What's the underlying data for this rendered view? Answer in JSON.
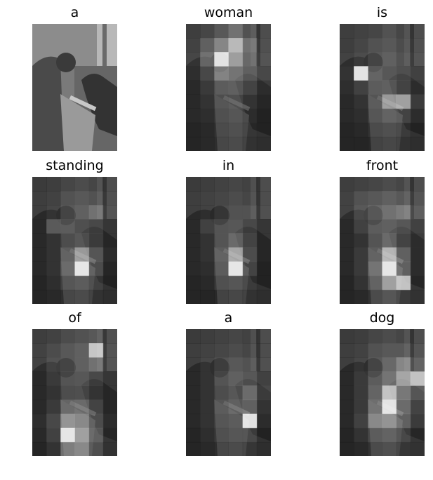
{
  "panels": [
    {
      "word": "a",
      "heat": [
        [
          0.55,
          0.55,
          0.55,
          0.55,
          0.55,
          0.55
        ],
        [
          0.55,
          0.55,
          0.55,
          0.55,
          0.55,
          0.55
        ],
        [
          0.55,
          0.55,
          0.55,
          0.55,
          0.55,
          0.55
        ],
        [
          0.55,
          0.55,
          0.55,
          0.55,
          0.55,
          0.55
        ],
        [
          0.55,
          0.55,
          0.55,
          0.55,
          0.55,
          0.55
        ],
        [
          0.55,
          0.55,
          0.55,
          0.55,
          0.55,
          0.55
        ],
        [
          0.55,
          0.55,
          0.55,
          0.55,
          0.55,
          0.55
        ],
        [
          0.55,
          0.55,
          0.55,
          0.55,
          0.55,
          0.55
        ],
        [
          0.55,
          0.55,
          0.55,
          0.55,
          0.55,
          0.55
        ]
      ]
    },
    {
      "word": "woman",
      "heat": [
        [
          0.1,
          0.2,
          0.35,
          0.5,
          0.3,
          0.1
        ],
        [
          0.15,
          0.4,
          0.6,
          0.8,
          0.5,
          0.15
        ],
        [
          0.2,
          0.5,
          0.95,
          0.7,
          0.45,
          0.2
        ],
        [
          0.15,
          0.35,
          0.6,
          0.55,
          0.45,
          0.3
        ],
        [
          0.1,
          0.25,
          0.4,
          0.45,
          0.35,
          0.2
        ],
        [
          0.1,
          0.2,
          0.3,
          0.35,
          0.25,
          0.15
        ],
        [
          0.1,
          0.15,
          0.25,
          0.3,
          0.2,
          0.1
        ],
        [
          0.05,
          0.1,
          0.2,
          0.25,
          0.15,
          0.1
        ],
        [
          0.05,
          0.1,
          0.15,
          0.2,
          0.1,
          0.05
        ]
      ]
    },
    {
      "word": "is",
      "heat": [
        [
          0.1,
          0.15,
          0.2,
          0.3,
          0.2,
          0.1
        ],
        [
          0.1,
          0.2,
          0.3,
          0.35,
          0.25,
          0.15
        ],
        [
          0.15,
          0.25,
          0.35,
          0.4,
          0.3,
          0.2
        ],
        [
          0.2,
          0.95,
          0.45,
          0.4,
          0.35,
          0.25
        ],
        [
          0.15,
          0.3,
          0.4,
          0.45,
          0.35,
          0.2
        ],
        [
          0.1,
          0.2,
          0.35,
          0.7,
          0.75,
          0.3
        ],
        [
          0.1,
          0.15,
          0.3,
          0.4,
          0.35,
          0.2
        ],
        [
          0.05,
          0.1,
          0.2,
          0.25,
          0.2,
          0.1
        ],
        [
          0.05,
          0.05,
          0.1,
          0.15,
          0.1,
          0.05
        ]
      ]
    },
    {
      "word": "standing",
      "heat": [
        [
          0.05,
          0.1,
          0.2,
          0.25,
          0.2,
          0.1
        ],
        [
          0.1,
          0.15,
          0.3,
          0.35,
          0.3,
          0.15
        ],
        [
          0.1,
          0.2,
          0.35,
          0.4,
          0.5,
          0.2
        ],
        [
          0.1,
          0.45,
          0.4,
          0.35,
          0.3,
          0.15
        ],
        [
          0.1,
          0.2,
          0.3,
          0.4,
          0.3,
          0.15
        ],
        [
          0.1,
          0.2,
          0.4,
          0.7,
          0.45,
          0.2
        ],
        [
          0.1,
          0.2,
          0.45,
          0.95,
          0.4,
          0.15
        ],
        [
          0.05,
          0.15,
          0.3,
          0.35,
          0.25,
          0.1
        ],
        [
          0.05,
          0.1,
          0.15,
          0.2,
          0.1,
          0.05
        ]
      ]
    },
    {
      "word": "in",
      "heat": [
        [
          0.05,
          0.1,
          0.15,
          0.2,
          0.15,
          0.1
        ],
        [
          0.1,
          0.15,
          0.2,
          0.25,
          0.2,
          0.1
        ],
        [
          0.1,
          0.15,
          0.25,
          0.3,
          0.3,
          0.15
        ],
        [
          0.1,
          0.3,
          0.35,
          0.4,
          0.3,
          0.15
        ],
        [
          0.1,
          0.2,
          0.35,
          0.5,
          0.35,
          0.15
        ],
        [
          0.1,
          0.2,
          0.4,
          0.75,
          0.4,
          0.15
        ],
        [
          0.1,
          0.15,
          0.35,
          0.95,
          0.35,
          0.1
        ],
        [
          0.05,
          0.1,
          0.25,
          0.3,
          0.2,
          0.1
        ],
        [
          0.05,
          0.05,
          0.1,
          0.15,
          0.1,
          0.05
        ]
      ]
    },
    {
      "word": "front",
      "heat": [
        [
          0.1,
          0.15,
          0.2,
          0.25,
          0.2,
          0.1
        ],
        [
          0.15,
          0.3,
          0.35,
          0.4,
          0.35,
          0.2
        ],
        [
          0.15,
          0.35,
          0.45,
          0.5,
          0.55,
          0.3
        ],
        [
          0.1,
          0.3,
          0.4,
          0.45,
          0.4,
          0.25
        ],
        [
          0.1,
          0.2,
          0.35,
          0.5,
          0.35,
          0.2
        ],
        [
          0.1,
          0.25,
          0.4,
          0.8,
          0.5,
          0.2
        ],
        [
          0.1,
          0.25,
          0.5,
          0.95,
          0.5,
          0.2
        ],
        [
          0.05,
          0.2,
          0.4,
          0.7,
          0.85,
          0.15
        ],
        [
          0.05,
          0.1,
          0.2,
          0.3,
          0.2,
          0.1
        ]
      ]
    },
    {
      "word": "of",
      "heat": [
        [
          0.1,
          0.15,
          0.25,
          0.3,
          0.35,
          0.15
        ],
        [
          0.15,
          0.25,
          0.35,
          0.4,
          0.85,
          0.2
        ],
        [
          0.15,
          0.3,
          0.35,
          0.4,
          0.5,
          0.2
        ],
        [
          0.1,
          0.25,
          0.35,
          0.4,
          0.3,
          0.15
        ],
        [
          0.1,
          0.2,
          0.3,
          0.35,
          0.25,
          0.15
        ],
        [
          0.1,
          0.25,
          0.45,
          0.5,
          0.35,
          0.15
        ],
        [
          0.15,
          0.35,
          0.65,
          0.6,
          0.4,
          0.2
        ],
        [
          0.1,
          0.3,
          0.95,
          0.7,
          0.45,
          0.15
        ],
        [
          0.05,
          0.2,
          0.55,
          0.6,
          0.35,
          0.1
        ]
      ]
    },
    {
      "word": "a",
      "heat": [
        [
          0.05,
          0.1,
          0.15,
          0.2,
          0.15,
          0.1
        ],
        [
          0.1,
          0.15,
          0.2,
          0.25,
          0.2,
          0.1
        ],
        [
          0.1,
          0.2,
          0.3,
          0.35,
          0.3,
          0.15
        ],
        [
          0.1,
          0.2,
          0.35,
          0.45,
          0.4,
          0.25
        ],
        [
          0.1,
          0.2,
          0.3,
          0.4,
          0.55,
          0.3
        ],
        [
          0.1,
          0.2,
          0.35,
          0.45,
          0.5,
          0.25
        ],
        [
          0.1,
          0.2,
          0.3,
          0.35,
          0.95,
          0.2
        ],
        [
          0.05,
          0.15,
          0.25,
          0.3,
          0.3,
          0.1
        ],
        [
          0.05,
          0.1,
          0.15,
          0.2,
          0.15,
          0.05
        ]
      ]
    },
    {
      "word": "dog",
      "heat": [
        [
          0.05,
          0.1,
          0.2,
          0.25,
          0.2,
          0.1
        ],
        [
          0.1,
          0.15,
          0.3,
          0.35,
          0.35,
          0.2
        ],
        [
          0.1,
          0.2,
          0.35,
          0.45,
          0.6,
          0.35
        ],
        [
          0.1,
          0.25,
          0.4,
          0.55,
          0.75,
          0.85
        ],
        [
          0.1,
          0.25,
          0.45,
          0.85,
          0.6,
          0.45
        ],
        [
          0.1,
          0.25,
          0.5,
          0.95,
          0.55,
          0.35
        ],
        [
          0.1,
          0.3,
          0.6,
          0.65,
          0.5,
          0.3
        ],
        [
          0.05,
          0.2,
          0.35,
          0.4,
          0.3,
          0.15
        ],
        [
          0.05,
          0.1,
          0.2,
          0.25,
          0.15,
          0.1
        ]
      ]
    }
  ]
}
